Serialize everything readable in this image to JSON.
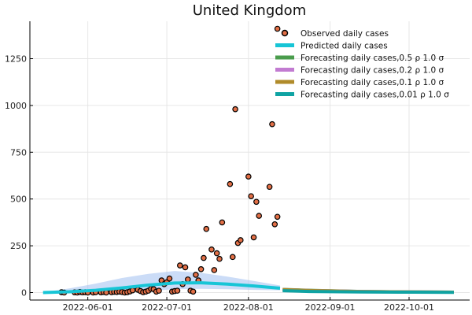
{
  "chart_data": {
    "type": "scatter",
    "title": "United Kingdom",
    "xlabel": "",
    "ylabel": "",
    "x_axis": "date",
    "xlim": [
      "2022-05-10",
      "2022-10-24"
    ],
    "ylim": [
      -40,
      1450
    ],
    "xticks": [
      "2022-06-01",
      "2022-07-01",
      "2022-08-01",
      "2022-09-01",
      "2022-10-01"
    ],
    "yticks": [
      0,
      250,
      500,
      750,
      1000,
      1250
    ],
    "grid": true,
    "legend_position": "top-right",
    "series": [
      {
        "name": "Observed daily cases",
        "kind": "scatter",
        "color": "#e26f46",
        "points": [
          [
            "2022-05-22",
            2
          ],
          [
            "2022-05-23",
            0
          ],
          [
            "2022-05-27",
            1
          ],
          [
            "2022-05-28",
            0
          ],
          [
            "2022-05-29",
            3
          ],
          [
            "2022-05-30",
            1
          ],
          [
            "2022-05-31",
            2
          ],
          [
            "2022-06-01",
            0
          ],
          [
            "2022-06-03",
            0
          ],
          [
            "2022-06-04",
            2
          ],
          [
            "2022-06-06",
            1
          ],
          [
            "2022-06-07",
            3
          ],
          [
            "2022-06-08",
            0
          ],
          [
            "2022-06-10",
            2
          ],
          [
            "2022-06-11",
            4
          ],
          [
            "2022-06-12",
            3
          ],
          [
            "2022-06-13",
            5
          ],
          [
            "2022-06-14",
            3
          ],
          [
            "2022-06-15",
            0
          ],
          [
            "2022-06-16",
            2
          ],
          [
            "2022-06-17",
            6
          ],
          [
            "2022-06-18",
            12
          ],
          [
            "2022-06-20",
            15
          ],
          [
            "2022-06-21",
            8
          ],
          [
            "2022-06-22",
            2
          ],
          [
            "2022-06-23",
            5
          ],
          [
            "2022-06-24",
            10
          ],
          [
            "2022-06-25",
            20
          ],
          [
            "2022-06-26",
            18
          ],
          [
            "2022-06-27",
            5
          ],
          [
            "2022-06-28",
            10
          ],
          [
            "2022-06-29",
            65
          ],
          [
            "2022-06-30",
            45
          ],
          [
            "2022-07-01",
            55
          ],
          [
            "2022-07-02",
            75
          ],
          [
            "2022-07-03",
            5
          ],
          [
            "2022-07-04",
            8
          ],
          [
            "2022-07-05",
            10
          ],
          [
            "2022-07-06",
            145
          ],
          [
            "2022-07-07",
            45
          ],
          [
            "2022-07-08",
            135
          ],
          [
            "2022-07-09",
            70
          ],
          [
            "2022-07-10",
            10
          ],
          [
            "2022-07-11",
            5
          ],
          [
            "2022-07-12",
            95
          ],
          [
            "2022-07-13",
            65
          ],
          [
            "2022-07-14",
            125
          ],
          [
            "2022-07-15",
            185
          ],
          [
            "2022-07-16",
            340
          ],
          [
            "2022-07-18",
            230
          ],
          [
            "2022-07-19",
            120
          ],
          [
            "2022-07-20",
            210
          ],
          [
            "2022-07-21",
            180
          ],
          [
            "2022-07-22",
            375
          ],
          [
            "2022-07-25",
            580
          ],
          [
            "2022-07-26",
            190
          ],
          [
            "2022-07-27",
            980
          ],
          [
            "2022-07-28",
            265
          ],
          [
            "2022-07-29",
            280
          ],
          [
            "2022-08-01",
            620
          ],
          [
            "2022-08-02",
            515
          ],
          [
            "2022-08-03",
            295
          ],
          [
            "2022-08-04",
            485
          ],
          [
            "2022-08-05",
            410
          ],
          [
            "2022-08-09",
            565
          ],
          [
            "2022-08-10",
            900
          ],
          [
            "2022-08-11",
            365
          ],
          [
            "2022-08-12",
            405
          ],
          [
            "2022-08-12",
            1410
          ]
        ]
      },
      {
        "name": "Predicted daily cases",
        "kind": "line",
        "color": "#17c5d6",
        "band_color": "#a9c4f1",
        "points": [
          [
            "2022-05-15",
            0
          ],
          [
            "2022-05-25",
            4
          ],
          [
            "2022-06-04",
            12
          ],
          [
            "2022-06-14",
            25
          ],
          [
            "2022-06-24",
            40
          ],
          [
            "2022-07-04",
            51
          ],
          [
            "2022-07-14",
            52
          ],
          [
            "2022-07-24",
            45
          ],
          [
            "2022-08-03",
            35
          ],
          [
            "2022-08-13",
            23
          ]
        ],
        "band": [
          [
            "2022-05-15",
            0,
            2
          ],
          [
            "2022-05-25",
            0,
            22
          ],
          [
            "2022-06-04",
            0,
            48
          ],
          [
            "2022-06-14",
            0,
            78
          ],
          [
            "2022-06-24",
            8,
            100
          ],
          [
            "2022-07-04",
            18,
            115
          ],
          [
            "2022-07-14",
            20,
            105
          ],
          [
            "2022-07-24",
            18,
            85
          ],
          [
            "2022-08-03",
            14,
            62
          ],
          [
            "2022-08-13",
            12,
            38
          ]
        ]
      },
      {
        "name": "Forecasting daily cases,0.5 ρ 1.0 σ",
        "kind": "line",
        "color": "#4a9c4c",
        "points": [
          [
            "2022-08-14",
            17
          ],
          [
            "2022-08-24",
            12
          ],
          [
            "2022-09-13",
            6
          ],
          [
            "2022-10-03",
            3
          ],
          [
            "2022-10-18",
            2
          ]
        ]
      },
      {
        "name": "Forecasting daily cases,0.2 ρ 1.0 σ",
        "kind": "line",
        "color": "#c27bd1",
        "points": [
          [
            "2022-08-14",
            16
          ],
          [
            "2022-08-24",
            11
          ],
          [
            "2022-09-13",
            6
          ],
          [
            "2022-10-03",
            3
          ],
          [
            "2022-10-18",
            2
          ]
        ]
      },
      {
        "name": "Forecasting daily cases,0.1 ρ 1.0 σ",
        "kind": "line",
        "color": "#b08b2a",
        "points": [
          [
            "2022-08-14",
            16
          ],
          [
            "2022-08-24",
            11
          ],
          [
            "2022-09-13",
            5
          ],
          [
            "2022-10-03",
            3
          ],
          [
            "2022-10-18",
            2
          ]
        ]
      },
      {
        "name": "Forecasting daily cases,0.01 ρ 1.0 σ",
        "kind": "line",
        "color": "#0fa3a3",
        "points": [
          [
            "2022-08-14",
            10
          ],
          [
            "2022-08-24",
            6
          ],
          [
            "2022-09-13",
            3
          ],
          [
            "2022-10-03",
            2
          ],
          [
            "2022-10-18",
            1
          ]
        ]
      }
    ]
  }
}
